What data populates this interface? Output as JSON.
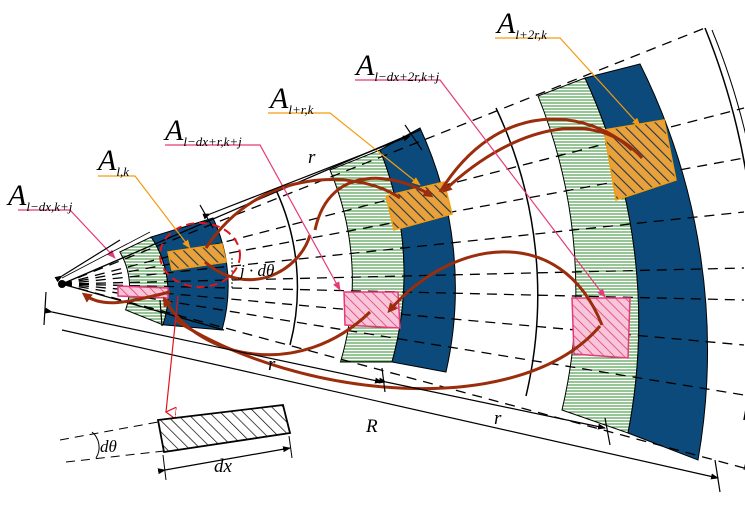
{
  "labels": {
    "a_l_dx_k_j": {
      "main": "A",
      "sub": "l−dx,k+j"
    },
    "a_l_k": {
      "main": "A",
      "sub": "l,k"
    },
    "a_l_dx_r_k_j": {
      "main": "A",
      "sub": "l−dx+r,k+j"
    },
    "a_l_r_k": {
      "main": "A",
      "sub": "l+r,k"
    },
    "a_l_dx_2r_k_j": {
      "main": "A",
      "sub": "l−dx+2r,k+j"
    },
    "a_l_2r_k": {
      "main": "A",
      "sub": "l+2r,k"
    },
    "r_top": "r",
    "r_bottom1": "r",
    "r_bottom2": "r",
    "R": "R",
    "j_dtheta": "j · dθ",
    "dtheta_inset": "dθ",
    "dx_inset": "dx"
  },
  "colors": {
    "dark_band": "#0b4a7a",
    "green_stripes": "#2e8b2e",
    "orange": "#f39c12",
    "pink": "#e6397a",
    "arrow_brown": "#9b2d0c",
    "red_dashed": "#e0141c",
    "inset_arrow": "#e0141c"
  }
}
